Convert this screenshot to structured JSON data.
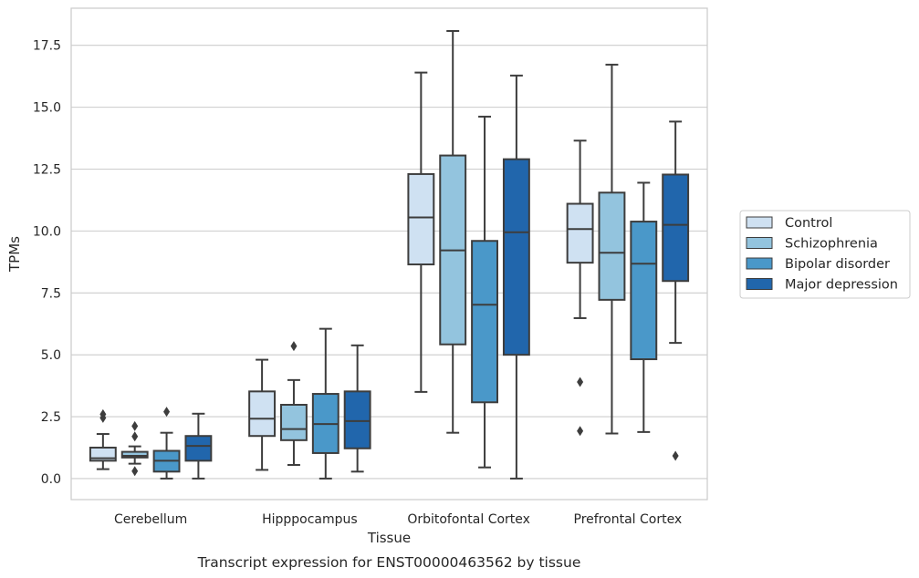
{
  "caption": "Transcript expression for ENST00000463562 by tissue",
  "chart_data": {
    "type": "box",
    "title": "",
    "xlabel": "Tissue",
    "ylabel": "TPMs",
    "ylim": [
      -0.85,
      19.0
    ],
    "yticks": [
      0.0,
      2.5,
      5.0,
      7.5,
      10.0,
      12.5,
      15.0,
      17.5
    ],
    "ytick_labels": [
      "0.0",
      "2.5",
      "5.0",
      "7.5",
      "10.0",
      "12.5",
      "15.0",
      "17.5"
    ],
    "grid": "horizontal",
    "legend_position": "right",
    "categories": [
      "Cerebellum",
      "Hipppocampus",
      "Orbitofontal Cortex",
      "Prefrontal Cortex"
    ],
    "series": [
      {
        "name": "Control",
        "color": "#cfe1f2",
        "boxes": [
          {
            "whislo": 0.38,
            "q1": 0.72,
            "med": 0.82,
            "q3": 1.25,
            "whishi": 1.8,
            "fliers": [
              2.45,
              2.6
            ]
          },
          {
            "whislo": 0.35,
            "q1": 1.72,
            "med": 2.42,
            "q3": 3.52,
            "whishi": 4.8,
            "fliers": []
          },
          {
            "whislo": 3.5,
            "q1": 8.65,
            "med": 10.55,
            "q3": 12.3,
            "whishi": 16.4,
            "fliers": []
          },
          {
            "whislo": 6.48,
            "q1": 8.72,
            "med": 10.08,
            "q3": 11.1,
            "whishi": 13.65,
            "fliers": [
              1.92,
              3.9
            ]
          }
        ]
      },
      {
        "name": "Schizophrenia",
        "color": "#93c4de",
        "boxes": [
          {
            "whislo": 0.6,
            "q1": 0.85,
            "med": 0.92,
            "q3": 1.08,
            "whishi": 1.3,
            "fliers": [
              0.3,
              1.7,
              2.12
            ]
          },
          {
            "whislo": 0.55,
            "q1": 1.55,
            "med": 2.0,
            "q3": 2.98,
            "whishi": 3.98,
            "fliers": [
              5.35
            ]
          },
          {
            "whislo": 1.85,
            "q1": 5.42,
            "med": 9.22,
            "q3": 13.05,
            "whishi": 18.08,
            "fliers": []
          },
          {
            "whislo": 1.82,
            "q1": 7.22,
            "med": 9.12,
            "q3": 11.55,
            "whishi": 16.72,
            "fliers": []
          }
        ]
      },
      {
        "name": "Bipolar disorder",
        "color": "#4a98c9",
        "boxes": [
          {
            "whislo": 0.0,
            "q1": 0.28,
            "med": 0.72,
            "q3": 1.12,
            "whishi": 1.85,
            "fliers": [
              2.7
            ]
          },
          {
            "whislo": 0.0,
            "q1": 1.03,
            "med": 2.2,
            "q3": 3.42,
            "whishi": 6.05,
            "fliers": []
          },
          {
            "whislo": 0.45,
            "q1": 3.08,
            "med": 7.02,
            "q3": 9.6,
            "whishi": 14.62,
            "fliers": []
          },
          {
            "whislo": 1.88,
            "q1": 4.82,
            "med": 8.68,
            "q3": 10.38,
            "whishi": 11.95,
            "fliers": []
          }
        ]
      },
      {
        "name": "Major depression",
        "color": "#2166ac",
        "boxes": [
          {
            "whislo": 0.0,
            "q1": 0.72,
            "med": 1.32,
            "q3": 1.72,
            "whishi": 2.62,
            "fliers": []
          },
          {
            "whislo": 0.28,
            "q1": 1.22,
            "med": 2.32,
            "q3": 3.52,
            "whishi": 5.38,
            "fliers": []
          },
          {
            "whislo": 0.0,
            "q1": 5.0,
            "med": 9.95,
            "q3": 12.9,
            "whishi": 16.28,
            "fliers": []
          },
          {
            "whislo": 5.48,
            "q1": 7.98,
            "med": 10.25,
            "q3": 12.28,
            "whishi": 14.42,
            "fliers": [
              0.92
            ]
          }
        ]
      }
    ]
  }
}
